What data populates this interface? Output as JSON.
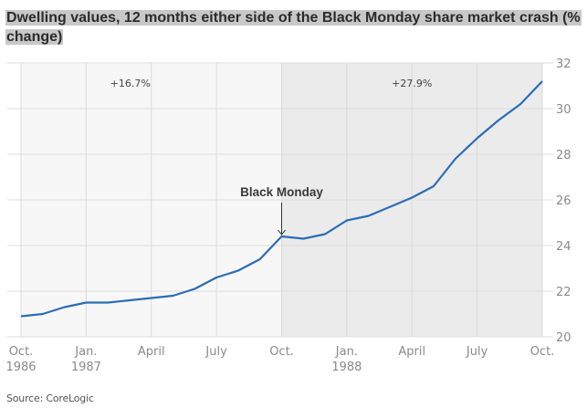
{
  "chart_data": {
    "type": "line",
    "title": "Dwelling values, 12 months either side of the Black Monday share market crash (% change)",
    "source": "Source: CoreLogic",
    "xlabel": "",
    "ylabel": "",
    "ylim": [
      20,
      32
    ],
    "yticks": [
      "20",
      "22",
      "24",
      "26",
      "28",
      "30",
      "32"
    ],
    "ytick_values": [
      20,
      22,
      24,
      26,
      28,
      30,
      32
    ],
    "xticks": [
      {
        "line1": "Oct.",
        "line2": "1986",
        "month_index": 0
      },
      {
        "line1": "Jan.",
        "line2": "1987",
        "month_index": 3
      },
      {
        "line1": "April",
        "line2": "",
        "month_index": 6
      },
      {
        "line1": "July",
        "line2": "",
        "month_index": 9
      },
      {
        "line1": "Oct.",
        "line2": "",
        "month_index": 12
      },
      {
        "line1": "Jan.",
        "line2": "1988",
        "month_index": 15
      },
      {
        "line1": "April",
        "line2": "",
        "month_index": 18
      },
      {
        "line1": "July",
        "line2": "",
        "month_index": 21
      },
      {
        "line1": "Oct.",
        "line2": "",
        "month_index": 24
      }
    ],
    "grid": true,
    "series": [
      {
        "name": "Dwelling values",
        "color": "#2a6db5",
        "x": [
          0,
          1,
          2,
          3,
          4,
          5,
          6,
          7,
          8,
          9,
          10,
          11,
          12,
          13,
          14,
          15,
          16,
          17,
          18,
          19,
          20,
          21,
          22,
          23,
          24
        ],
        "values": [
          20.9,
          21.0,
          21.3,
          21.5,
          21.5,
          21.6,
          21.7,
          21.8,
          22.1,
          22.6,
          22.9,
          23.4,
          24.4,
          24.3,
          24.5,
          25.1,
          25.3,
          25.7,
          26.1,
          26.6,
          27.8,
          28.7,
          29.5,
          30.2,
          31.2
        ]
      }
    ],
    "shaded_regions": [
      {
        "from": 0,
        "to": 12,
        "label": "+16.7%",
        "color": "#f7f7f7"
      },
      {
        "from": 12,
        "to": 24,
        "label": "+27.9%",
        "color": "#ebebeb"
      }
    ],
    "annotation": {
      "label": "Black Monday",
      "month_index": 12
    }
  }
}
